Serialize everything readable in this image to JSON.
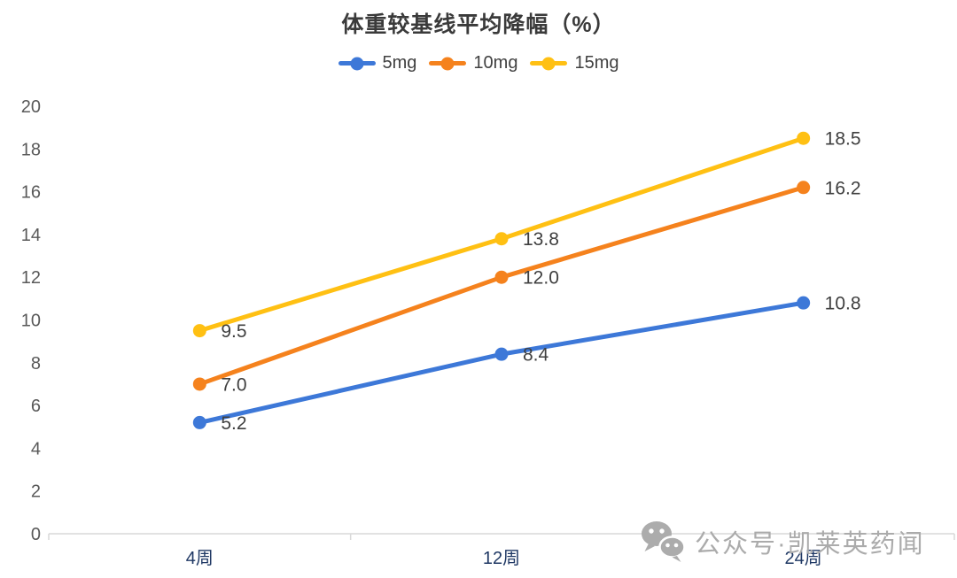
{
  "chart_data": {
    "type": "line",
    "title": "体重较基线平均降幅（%）",
    "categories": [
      "4周",
      "12周",
      "24周"
    ],
    "series": [
      {
        "name": "5mg",
        "color": "#3D78D8",
        "values": [
          5.2,
          8.4,
          10.8
        ]
      },
      {
        "name": "10mg",
        "color": "#F5821D",
        "values": [
          7.0,
          12.0,
          16.2
        ]
      },
      {
        "name": "15mg",
        "color": "#FFC013",
        "values": [
          9.5,
          13.8,
          18.5
        ]
      }
    ],
    "xlabel": "",
    "ylabel": "",
    "ylim": [
      0,
      20
    ],
    "ytick_step": 2,
    "grid": false,
    "legend_position": "top",
    "data_labels": true,
    "data_label_decimals": 1,
    "colors": {
      "y_tick_label": "#595959",
      "x_tick_label": "#1F3864",
      "axis_line": "#D9D9D9",
      "data_label": "#3F3F3F",
      "title": "#3A3A3A"
    }
  },
  "watermark": {
    "icon": "wechat-icon",
    "text": "公众号·凯莱英药闻"
  }
}
